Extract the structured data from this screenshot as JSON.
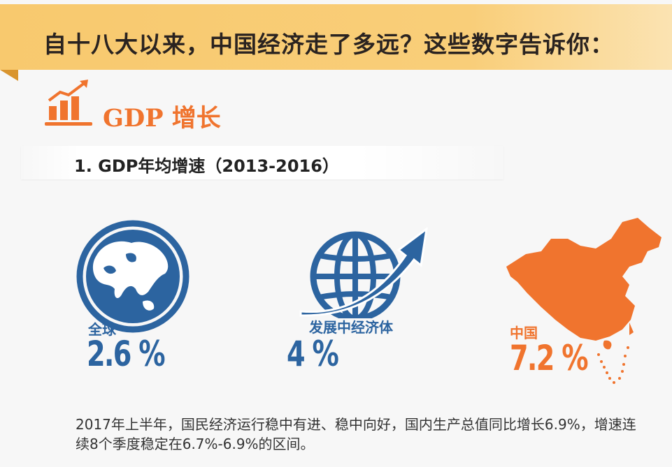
{
  "banner": {
    "title": "自十八大以来，中国经济走了多远？这些数字告诉你："
  },
  "section": {
    "icon": "bar-chart-growth-icon",
    "title": "GDP 增长"
  },
  "subhead": {
    "text": "1. GDP年均增速（2013-2016）"
  },
  "stats": [
    {
      "label": "全球",
      "value": "2.6 %",
      "icon": "globe-icon",
      "color": "#2c64a0"
    },
    {
      "label": "发展中经济体",
      "value": "4 %",
      "icon": "globe-arrow-icon",
      "color": "#2c64a0"
    },
    {
      "label": "中国",
      "value": "7.2 %",
      "icon": "china-map-icon",
      "color": "#f0742e"
    }
  ],
  "note": {
    "text": "2017年上半年，国民经济运行稳中有进、稳中向好，国内生产总值同比增长6.9%，增速连续8个季度稳定在6.7%-6.9%的区间。"
  }
}
